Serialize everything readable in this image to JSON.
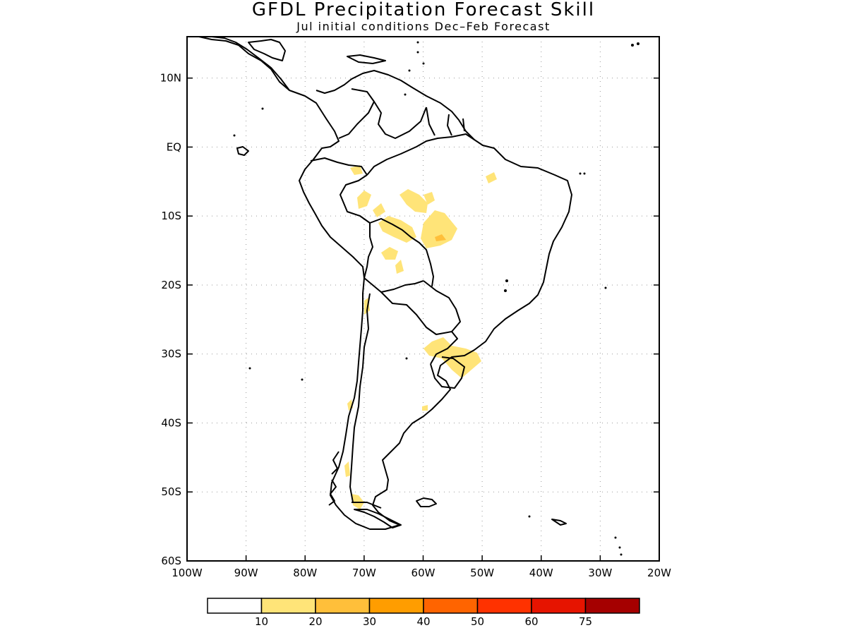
{
  "title": "GFDL Precipitation Forecast Skill",
  "subtitle": "Jul initial conditions   Dec–Feb Forecast",
  "map": {
    "lon_range": [
      -100,
      -20
    ],
    "lat_range": [
      -60,
      16
    ],
    "lon_ticks": [
      {
        "lon": -100,
        "label": "100W"
      },
      {
        "lon": -90,
        "label": "90W"
      },
      {
        "lon": -80,
        "label": "80W"
      },
      {
        "lon": -70,
        "label": "70W"
      },
      {
        "lon": -60,
        "label": "60W"
      },
      {
        "lon": -50,
        "label": "50W"
      },
      {
        "lon": -40,
        "label": "40W"
      },
      {
        "lon": -30,
        "label": "30W"
      },
      {
        "lon": -20,
        "label": "20W"
      }
    ],
    "lat_ticks": [
      {
        "lat": 10,
        "label": "10N"
      },
      {
        "lat": 0,
        "label": "EQ"
      },
      {
        "lat": -10,
        "label": "10S"
      },
      {
        "lat": -20,
        "label": "20S"
      },
      {
        "lat": -30,
        "label": "30S"
      },
      {
        "lat": -40,
        "label": "40S"
      },
      {
        "lat": -50,
        "label": "50S"
      },
      {
        "lat": -60,
        "label": "60S"
      }
    ],
    "grid": "dotted",
    "colors": {
      "land_outline": "#000000",
      "frame": "#000000",
      "grid": "#999999"
    }
  },
  "colorbar": {
    "labels": [
      "10",
      "20",
      "30",
      "40",
      "50",
      "60",
      "75"
    ],
    "colors": [
      "#ffffff",
      "#ffe478",
      "#ffbf3a",
      "#ff9d00",
      "#ff6400",
      "#ff3200",
      "#e61400",
      "#a50000"
    ]
  }
}
